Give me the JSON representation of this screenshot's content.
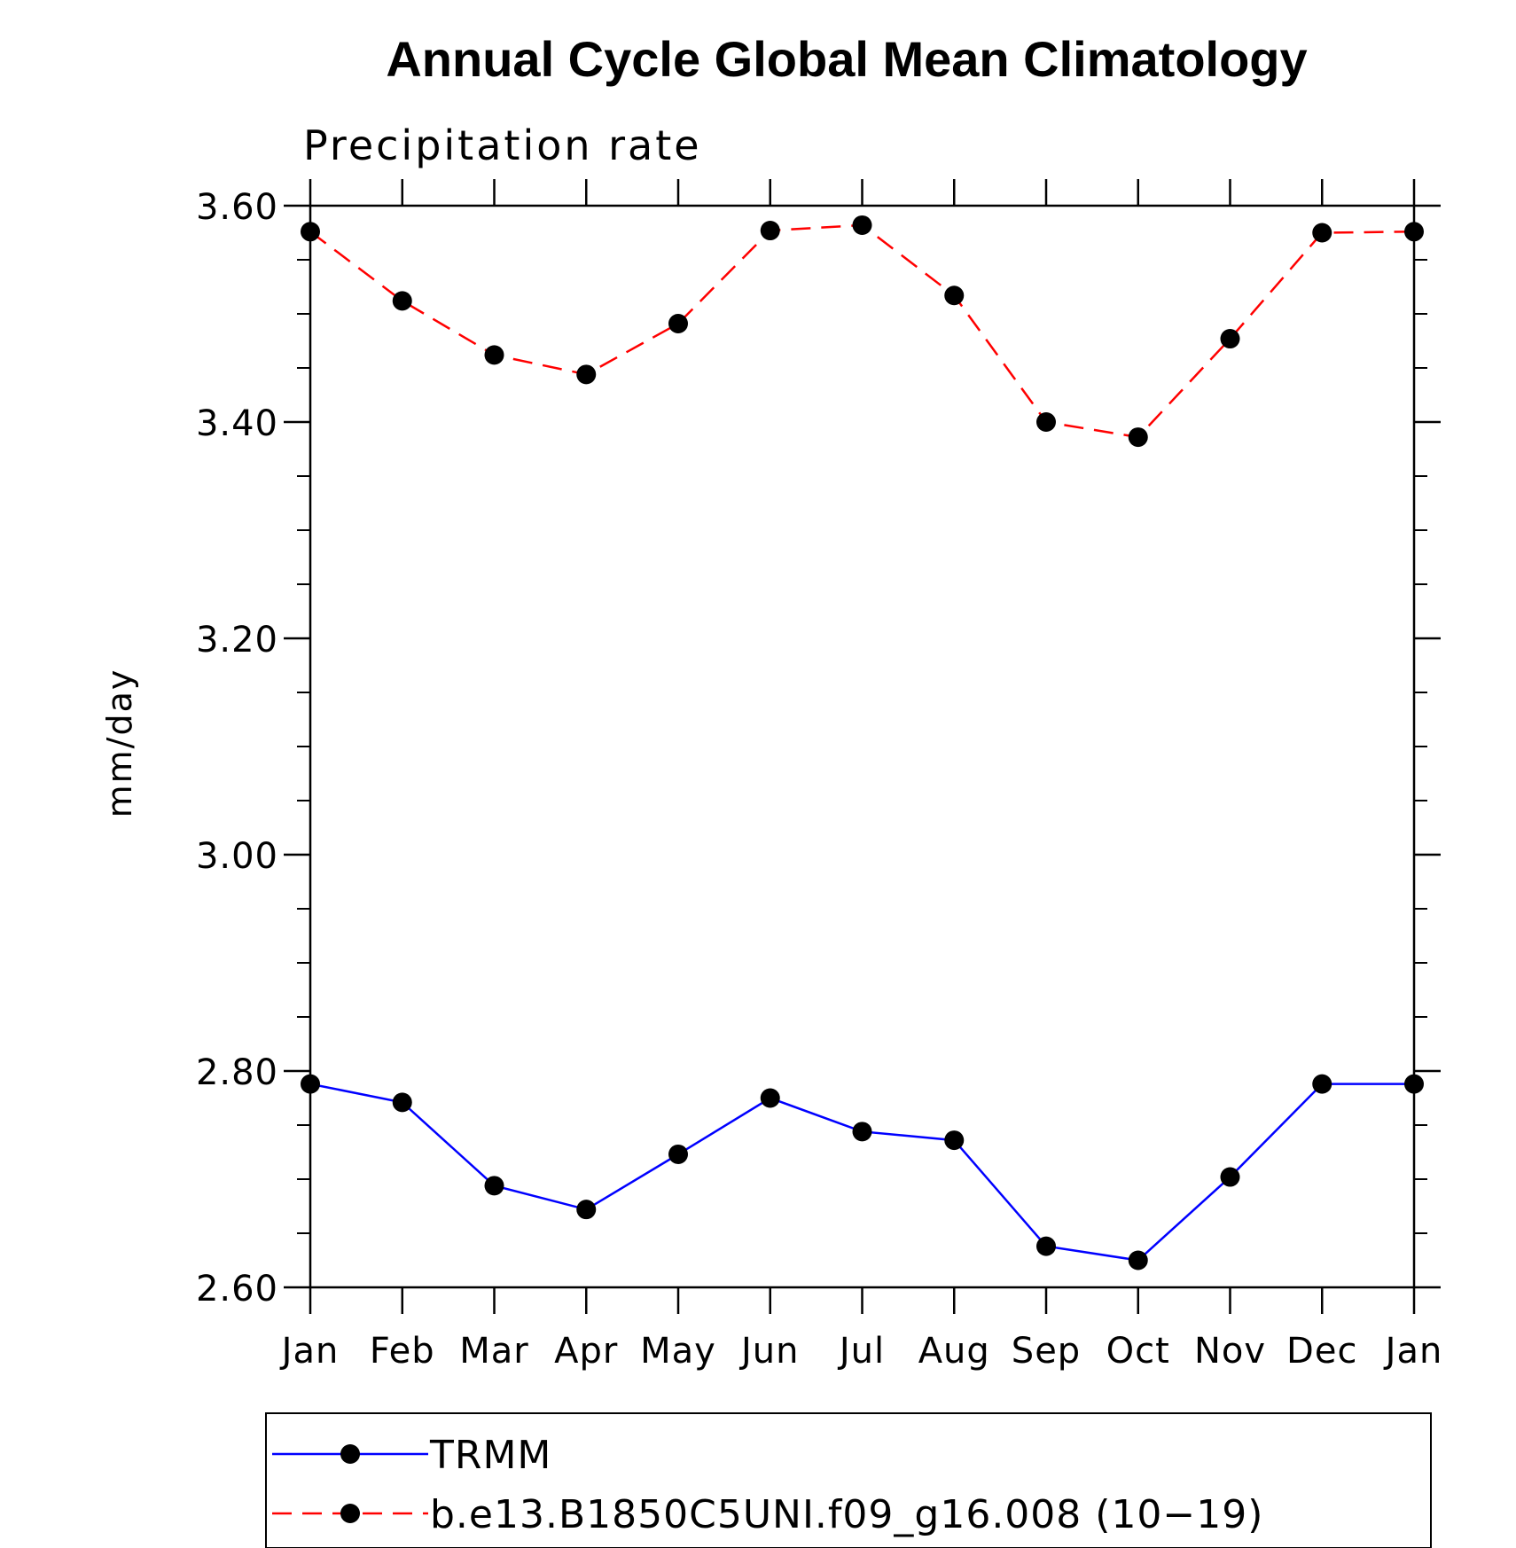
{
  "chart_data": {
    "type": "line",
    "title": "Annual Cycle Global Mean Climatology",
    "subtitle": "Precipitation rate",
    "xlabel": "",
    "ylabel": "mm/day",
    "categories": [
      "Jan",
      "Feb",
      "Mar",
      "Apr",
      "May",
      "Jun",
      "Jul",
      "Aug",
      "Sep",
      "Oct",
      "Nov",
      "Dec",
      "Jan"
    ],
    "ylim": [
      2.6,
      3.6
    ],
    "yticks": [
      "2.60",
      "2.80",
      "3.00",
      "3.20",
      "3.40",
      "3.60"
    ],
    "ytick_values": [
      2.6,
      2.8,
      3.0,
      3.2,
      3.4,
      3.6
    ],
    "grid": false,
    "legend_position": "bottom",
    "series": [
      {
        "name": "TRMM",
        "color": "#0000ff",
        "line_style": "solid",
        "marker": "filled-circle",
        "values": [
          2.788,
          2.771,
          2.694,
          2.672,
          2.723,
          2.775,
          2.744,
          2.736,
          2.638,
          2.625,
          2.702,
          2.788,
          2.788
        ]
      },
      {
        "name": "b.e13.B1850C5UNI.f09_g16.008 (10−19)",
        "color": "#ff0000",
        "line_style": "dashed",
        "marker": "filled-circle",
        "values": [
          3.576,
          3.512,
          3.462,
          3.444,
          3.491,
          3.577,
          3.582,
          3.517,
          3.4,
          3.386,
          3.477,
          3.575,
          3.576
        ]
      }
    ]
  }
}
